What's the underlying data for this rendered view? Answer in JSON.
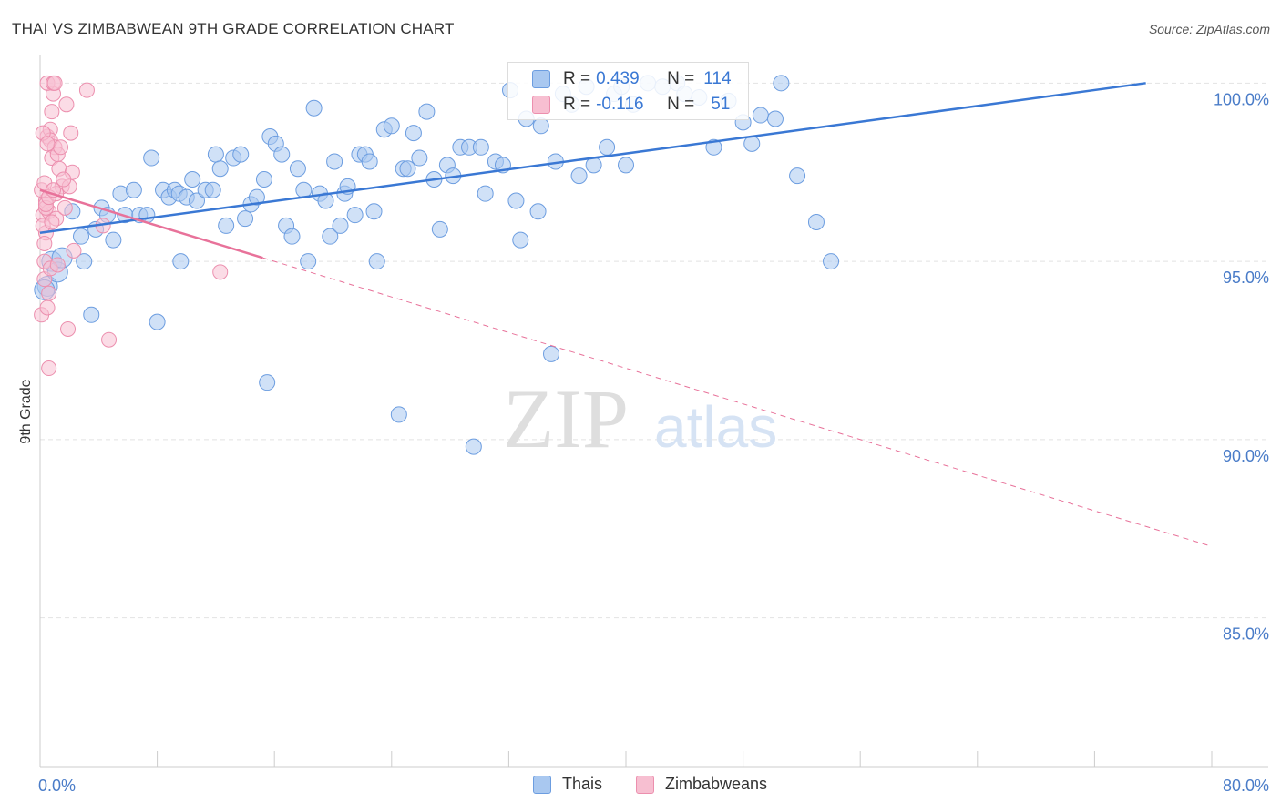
{
  "title": "THAI VS ZIMBABWEAN 9TH GRADE CORRELATION CHART",
  "source": "Source: ZipAtlas.com",
  "watermark": {
    "zip": "ZIP",
    "atlas": "atlas"
  },
  "legend": {
    "rows": [
      {
        "r_label": "R =",
        "r_value": "0.439",
        "n_label": "N =",
        "n_value": "114"
      },
      {
        "r_label": "R =",
        "r_value": "-0.116",
        "n_label": "N =",
        "n_value": "51"
      }
    ]
  },
  "bottom_legend": [
    "Thais",
    "Zimbabweans"
  ],
  "colors": {
    "blue_fill": "#a9c8f0",
    "blue_stroke": "#6c9de0",
    "blue_line": "#3a78d4",
    "pink_fill": "#f7bfd1",
    "pink_stroke": "#ec8fae",
    "pink_line": "#e8729a",
    "axis_text": "#4a7cc8",
    "grid": "#e2e2e2"
  },
  "chart_data": {
    "type": "scatter",
    "title": "THAI VS ZIMBABWEAN 9TH GRADE CORRELATION CHART",
    "xlabel": "",
    "ylabel": "9th Grade",
    "xlim": [
      0,
      80
    ],
    "ylim": [
      80.8,
      100.8
    ],
    "x_tick_labels": [
      "0.0%",
      "80.0%"
    ],
    "y_ticks": [
      85,
      90,
      95,
      100
    ],
    "y_tick_labels": [
      "85.0%",
      "90.0%",
      "95.0%",
      "100.0%"
    ],
    "series": [
      {
        "name": "Thais",
        "r": 0.439,
        "n": 114,
        "trend": {
          "x": [
            0,
            75.5
          ],
          "y": [
            95.8,
            100.0
          ],
          "style": "solid"
        },
        "points": [
          [
            0.5,
            94.3
          ],
          [
            0.8,
            95.0
          ],
          [
            1.2,
            94.7
          ],
          [
            1.5,
            95.1
          ],
          [
            0.3,
            94.2
          ],
          [
            2.2,
            96.4
          ],
          [
            3.0,
            95.0
          ],
          [
            2.8,
            95.7
          ],
          [
            3.5,
            93.5
          ],
          [
            3.8,
            95.9
          ],
          [
            4.2,
            96.5
          ],
          [
            4.6,
            96.3
          ],
          [
            5.0,
            95.6
          ],
          [
            5.5,
            96.9
          ],
          [
            5.8,
            96.3
          ],
          [
            6.4,
            97.0
          ],
          [
            6.8,
            96.3
          ],
          [
            7.3,
            96.3
          ],
          [
            7.6,
            97.9
          ],
          [
            8.0,
            93.3
          ],
          [
            8.4,
            97.0
          ],
          [
            8.8,
            96.8
          ],
          [
            9.2,
            97.0
          ],
          [
            9.5,
            96.9
          ],
          [
            9.6,
            95.0
          ],
          [
            10.0,
            96.8
          ],
          [
            10.4,
            97.3
          ],
          [
            10.7,
            96.7
          ],
          [
            11.3,
            97.0
          ],
          [
            11.8,
            97.0
          ],
          [
            12.0,
            98.0
          ],
          [
            12.3,
            97.6
          ],
          [
            12.7,
            96.0
          ],
          [
            13.2,
            97.9
          ],
          [
            13.7,
            98.0
          ],
          [
            14.0,
            96.2
          ],
          [
            14.4,
            96.6
          ],
          [
            14.8,
            96.8
          ],
          [
            15.3,
            97.3
          ],
          [
            15.5,
            91.6
          ],
          [
            15.7,
            98.5
          ],
          [
            16.1,
            98.3
          ],
          [
            16.5,
            98.0
          ],
          [
            16.8,
            96.0
          ],
          [
            17.2,
            95.7
          ],
          [
            17.6,
            97.6
          ],
          [
            18.0,
            97.0
          ],
          [
            18.3,
            95.0
          ],
          [
            18.7,
            99.3
          ],
          [
            19.1,
            96.9
          ],
          [
            19.5,
            96.7
          ],
          [
            19.8,
            95.7
          ],
          [
            20.1,
            97.8
          ],
          [
            20.5,
            96.0
          ],
          [
            20.8,
            96.9
          ],
          [
            21.0,
            97.1
          ],
          [
            21.5,
            96.3
          ],
          [
            21.8,
            98.0
          ],
          [
            22.2,
            98.0
          ],
          [
            22.5,
            97.8
          ],
          [
            22.8,
            96.4
          ],
          [
            23.0,
            95.0
          ],
          [
            23.5,
            98.7
          ],
          [
            24.0,
            98.8
          ],
          [
            24.5,
            90.7
          ],
          [
            24.8,
            97.6
          ],
          [
            25.1,
            97.6
          ],
          [
            25.5,
            98.6
          ],
          [
            25.9,
            97.9
          ],
          [
            26.4,
            99.2
          ],
          [
            26.9,
            97.3
          ],
          [
            27.3,
            95.9
          ],
          [
            27.8,
            97.7
          ],
          [
            28.2,
            97.4
          ],
          [
            28.7,
            98.2
          ],
          [
            29.3,
            98.2
          ],
          [
            29.6,
            89.8
          ],
          [
            30.1,
            98.2
          ],
          [
            30.4,
            96.9
          ],
          [
            31.1,
            97.8
          ],
          [
            31.6,
            97.7
          ],
          [
            32.1,
            99.8
          ],
          [
            32.5,
            96.7
          ],
          [
            32.8,
            95.6
          ],
          [
            33.2,
            99.0
          ],
          [
            34.0,
            96.4
          ],
          [
            34.2,
            98.8
          ],
          [
            34.9,
            92.4
          ],
          [
            35.2,
            97.8
          ],
          [
            35.7,
            99.7
          ],
          [
            36.3,
            99.4
          ],
          [
            36.8,
            97.4
          ],
          [
            37.3,
            99.9
          ],
          [
            37.8,
            97.7
          ],
          [
            38.7,
            98.2
          ],
          [
            39.2,
            99.7
          ],
          [
            39.7,
            99.9
          ],
          [
            40.0,
            97.7
          ],
          [
            40.5,
            99.4
          ],
          [
            41.5,
            100.0
          ],
          [
            42.5,
            99.9
          ],
          [
            43.5,
            100.0
          ],
          [
            44.0,
            99.7
          ],
          [
            45.0,
            99.6
          ],
          [
            46.0,
            98.2
          ],
          [
            47.0,
            99.5
          ],
          [
            48.0,
            98.9
          ],
          [
            48.6,
            98.3
          ],
          [
            49.2,
            99.1
          ],
          [
            50.2,
            99.0
          ],
          [
            50.6,
            100.0
          ],
          [
            51.7,
            97.4
          ],
          [
            53.0,
            96.1
          ],
          [
            54.0,
            95.0
          ]
        ]
      },
      {
        "name": "Zimbabweans",
        "r": -0.116,
        "n": 51,
        "trend": {
          "x": [
            0,
            15.2
          ],
          "y": [
            97.0,
            95.1
          ],
          "style": "solid",
          "extended": {
            "x": [
              15.2,
              80
            ],
            "y": [
              95.1,
              87.0
            ],
            "style": "dashed"
          }
        },
        "points": [
          [
            0.1,
            93.5
          ],
          [
            0.3,
            95.0
          ],
          [
            0.2,
            96.3
          ],
          [
            0.4,
            96.7
          ],
          [
            0.1,
            97.0
          ],
          [
            0.5,
            98.5
          ],
          [
            0.3,
            94.5
          ],
          [
            0.6,
            92.0
          ],
          [
            0.4,
            95.8
          ],
          [
            0.2,
            96.0
          ],
          [
            0.7,
            98.7
          ],
          [
            0.5,
            93.7
          ],
          [
            0.8,
            99.2
          ],
          [
            0.3,
            97.2
          ],
          [
            0.6,
            96.4
          ],
          [
            0.9,
            99.7
          ],
          [
            0.4,
            96.5
          ],
          [
            0.7,
            98.4
          ],
          [
            0.5,
            100.0
          ],
          [
            1.0,
            98.2
          ],
          [
            0.8,
            97.9
          ],
          [
            0.6,
            94.1
          ],
          [
            1.1,
            96.2
          ],
          [
            0.9,
            100.0
          ],
          [
            1.2,
            98.0
          ],
          [
            0.4,
            96.6
          ],
          [
            1.3,
            97.6
          ],
          [
            1.0,
            100.0
          ],
          [
            1.5,
            97.1
          ],
          [
            0.7,
            94.8
          ],
          [
            1.8,
            99.4
          ],
          [
            2.0,
            97.1
          ],
          [
            2.2,
            97.5
          ],
          [
            1.6,
            97.3
          ],
          [
            1.4,
            98.2
          ],
          [
            2.1,
            98.6
          ],
          [
            1.9,
            93.1
          ],
          [
            2.3,
            95.3
          ],
          [
            1.7,
            96.5
          ],
          [
            1.1,
            96.9
          ],
          [
            3.2,
            99.8
          ],
          [
            4.3,
            96.0
          ],
          [
            4.7,
            92.8
          ],
          [
            12.3,
            94.7
          ],
          [
            0.2,
            98.6
          ],
          [
            0.6,
            96.8
          ],
          [
            0.9,
            97.0
          ],
          [
            0.3,
            95.5
          ],
          [
            0.5,
            98.3
          ],
          [
            0.8,
            96.1
          ],
          [
            1.2,
            94.9
          ]
        ]
      }
    ]
  }
}
